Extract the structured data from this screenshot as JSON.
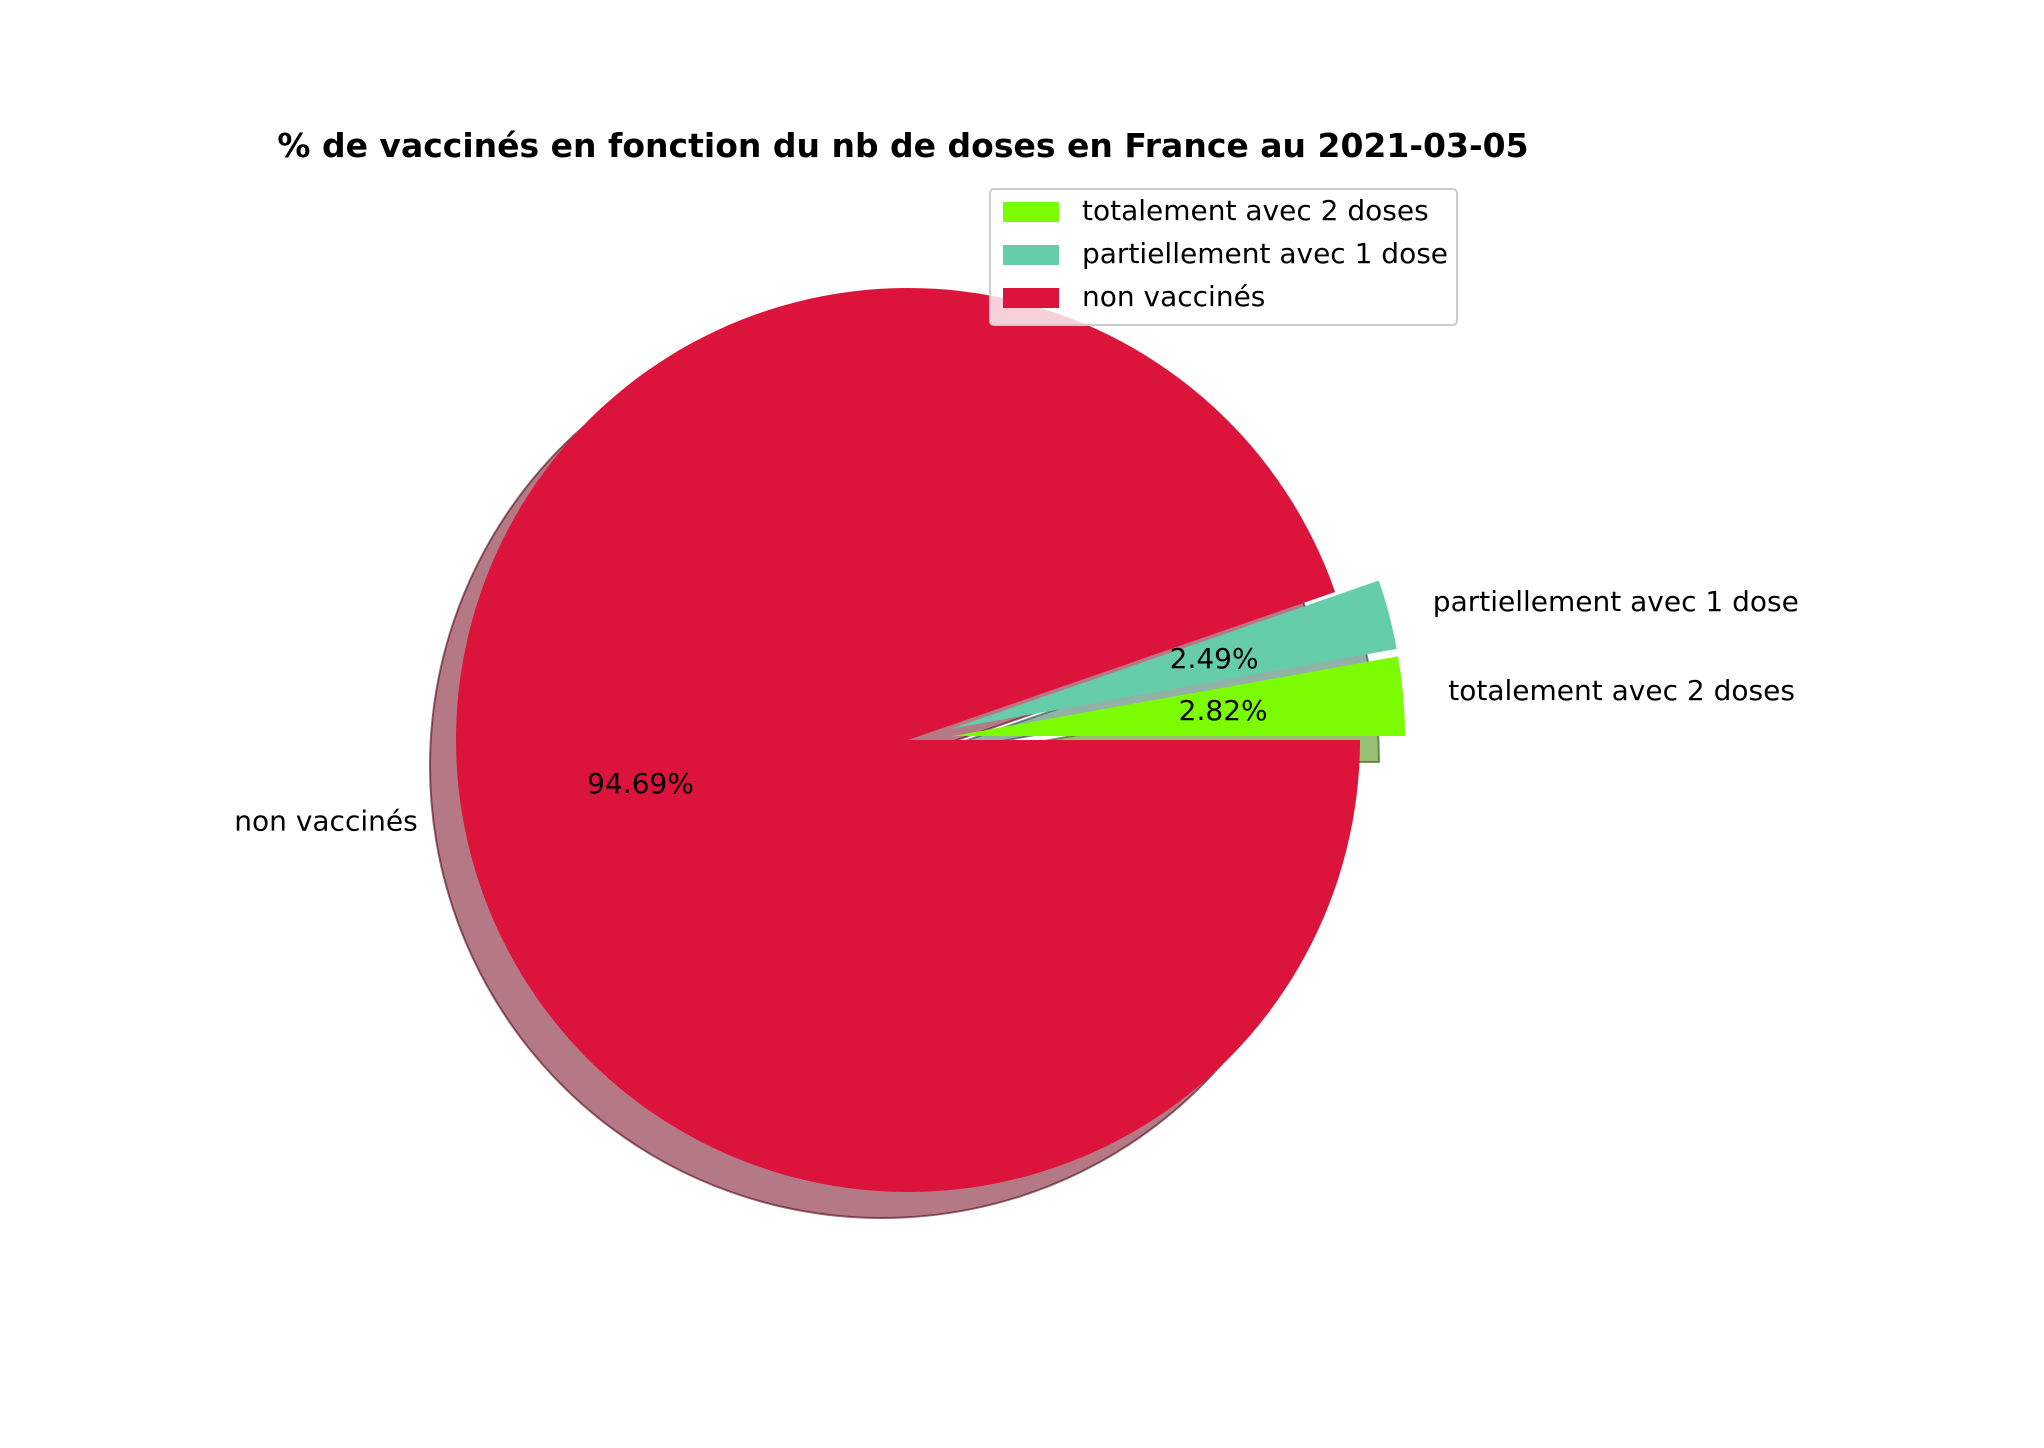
{
  "chart_data": {
    "type": "pie",
    "title": "% de vaccinés en fonction du nb de doses en France au 2021-03-05",
    "slices": [
      {
        "label": "totalement avec 2 doses",
        "value": 2.82,
        "pct_label": "2.82%",
        "color": "#7CFC00",
        "exploded": true
      },
      {
        "label": "partiellement avec 1 dose",
        "value": 2.49,
        "pct_label": "2.49%",
        "color": "#66CDAA",
        "exploded": true
      },
      {
        "label": "non vaccinés",
        "value": 94.69,
        "pct_label": "94.69%",
        "color": "#DC143C",
        "exploded": false
      }
    ],
    "shadow": true,
    "legend": {
      "placement": "top-right",
      "entries": [
        "totalement avec 2 doses",
        "partiellement avec 1 dose",
        "non vaccinés"
      ]
    }
  }
}
